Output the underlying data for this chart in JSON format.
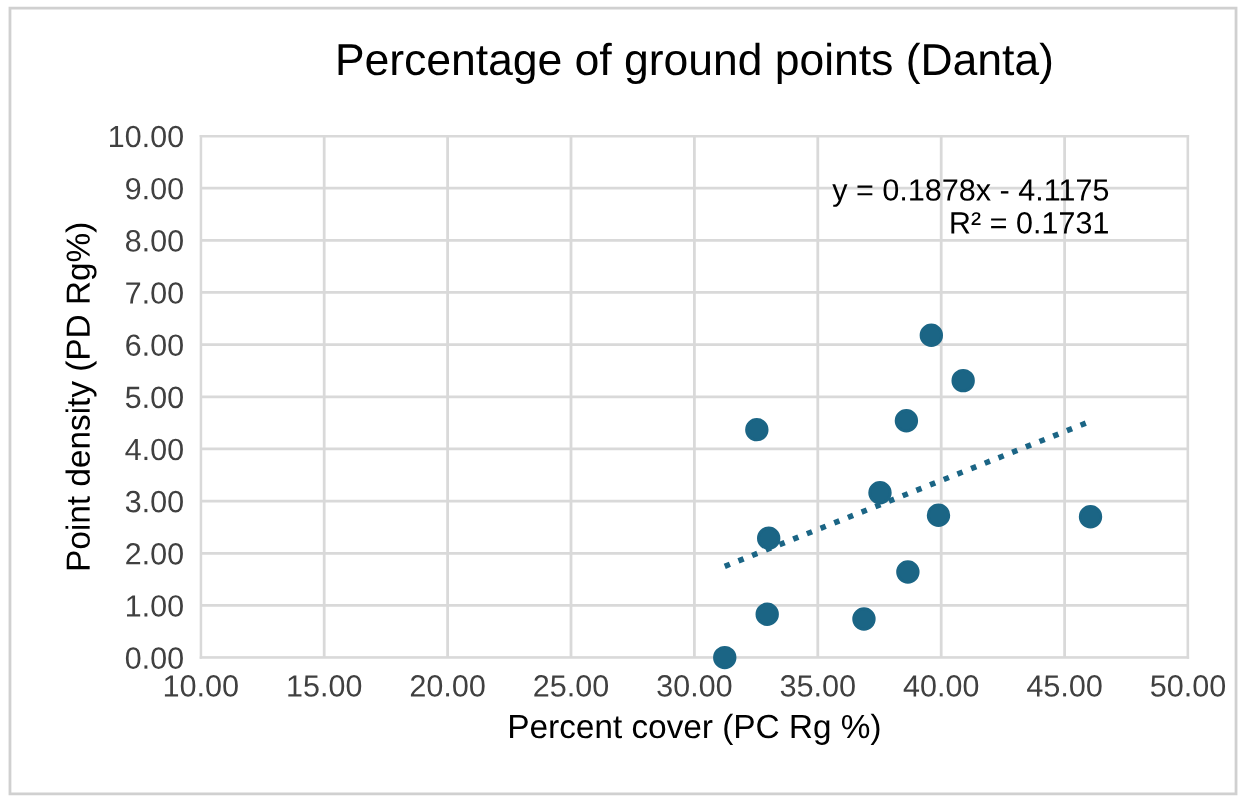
{
  "chart_data": {
    "type": "scatter",
    "title": "Percentage of ground points (Danta)",
    "xlabel": "Percent cover (PC Rg %)",
    "ylabel": "Point density (PD Rg%)",
    "series": [
      {
        "color": "#1b6585",
        "x": [
          31.23,
          32.53,
          33.01,
          32.95,
          36.87,
          37.52,
          38.59,
          38.65,
          39.6,
          39.89,
          40.89,
          46.05
        ],
        "values": [
          0,
          4.37,
          2.29,
          0.83,
          0.74,
          3.16,
          4.54,
          1.64,
          6.18,
          2.73,
          5.31,
          2.7
        ],
        "marker": "circle"
      },
      {
        "type": "line",
        "color": "#1b6585",
        "x": [
          31.23,
          46.05
        ],
        "values": [
          1.75,
          4.53
        ],
        "line_style": "dotted",
        "marker": "none"
      }
    ],
    "annotations": [
      "y = 0.1878x - 4.1175\nR² = 0.1731"
    ],
    "xlim": [
      10,
      50
    ],
    "xticks": [
      {
        "value": 10,
        "label": "10.00"
      },
      {
        "value": 15,
        "label": "15.00"
      },
      {
        "value": 20,
        "label": "20.00"
      },
      {
        "value": 25,
        "label": "25.00"
      },
      {
        "value": 30,
        "label": "30.00"
      },
      {
        "value": 35,
        "label": "35.00"
      },
      {
        "value": 40,
        "label": "40.00"
      },
      {
        "value": 45,
        "label": "45.00"
      },
      {
        "value": 50,
        "label": "50.00"
      }
    ],
    "ylim": [
      0,
      10
    ],
    "yticks": [
      {
        "value": 0,
        "label": "0.00"
      },
      {
        "value": 1,
        "label": "1.00"
      },
      {
        "value": 2,
        "label": "2.00"
      },
      {
        "value": 3,
        "label": "3.00"
      },
      {
        "value": 4,
        "label": "4.00"
      },
      {
        "value": 5,
        "label": "5.00"
      },
      {
        "value": 6,
        "label": "6.00"
      },
      {
        "value": 7,
        "label": "7.00"
      },
      {
        "value": 8,
        "label": "8.00"
      },
      {
        "value": 9,
        "label": "9.00"
      },
      {
        "value": 10,
        "label": "10.00"
      }
    ],
    "grid": true,
    "legend": false
  }
}
